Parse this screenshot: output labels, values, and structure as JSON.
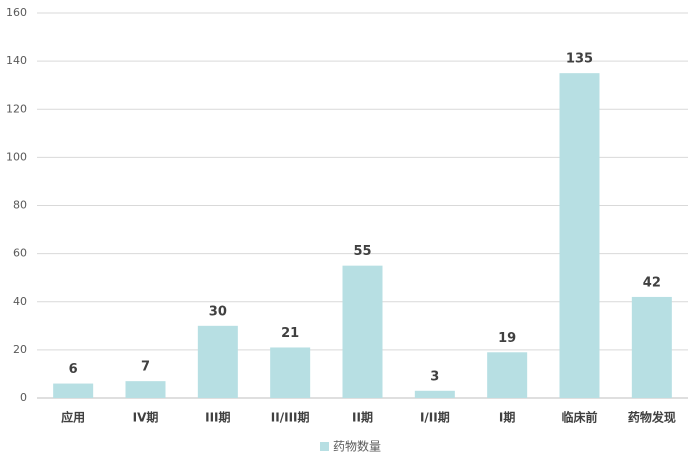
{
  "chart_data": {
    "type": "bar",
    "categories": [
      "应用",
      "IV期",
      "III期",
      "II/III期",
      "II期",
      "I/II期",
      "I期",
      "临床前",
      "药物发现"
    ],
    "series": [
      {
        "name": "药物数量",
        "color": "#b7dfe3",
        "values": [
          6,
          7,
          30,
          21,
          55,
          3,
          19,
          135,
          42
        ]
      }
    ],
    "ylim": [
      0,
      160
    ],
    "yticks": [
      0,
      20,
      40,
      60,
      80,
      100,
      120,
      140,
      160
    ],
    "grid": true,
    "legend": "bottom"
  }
}
